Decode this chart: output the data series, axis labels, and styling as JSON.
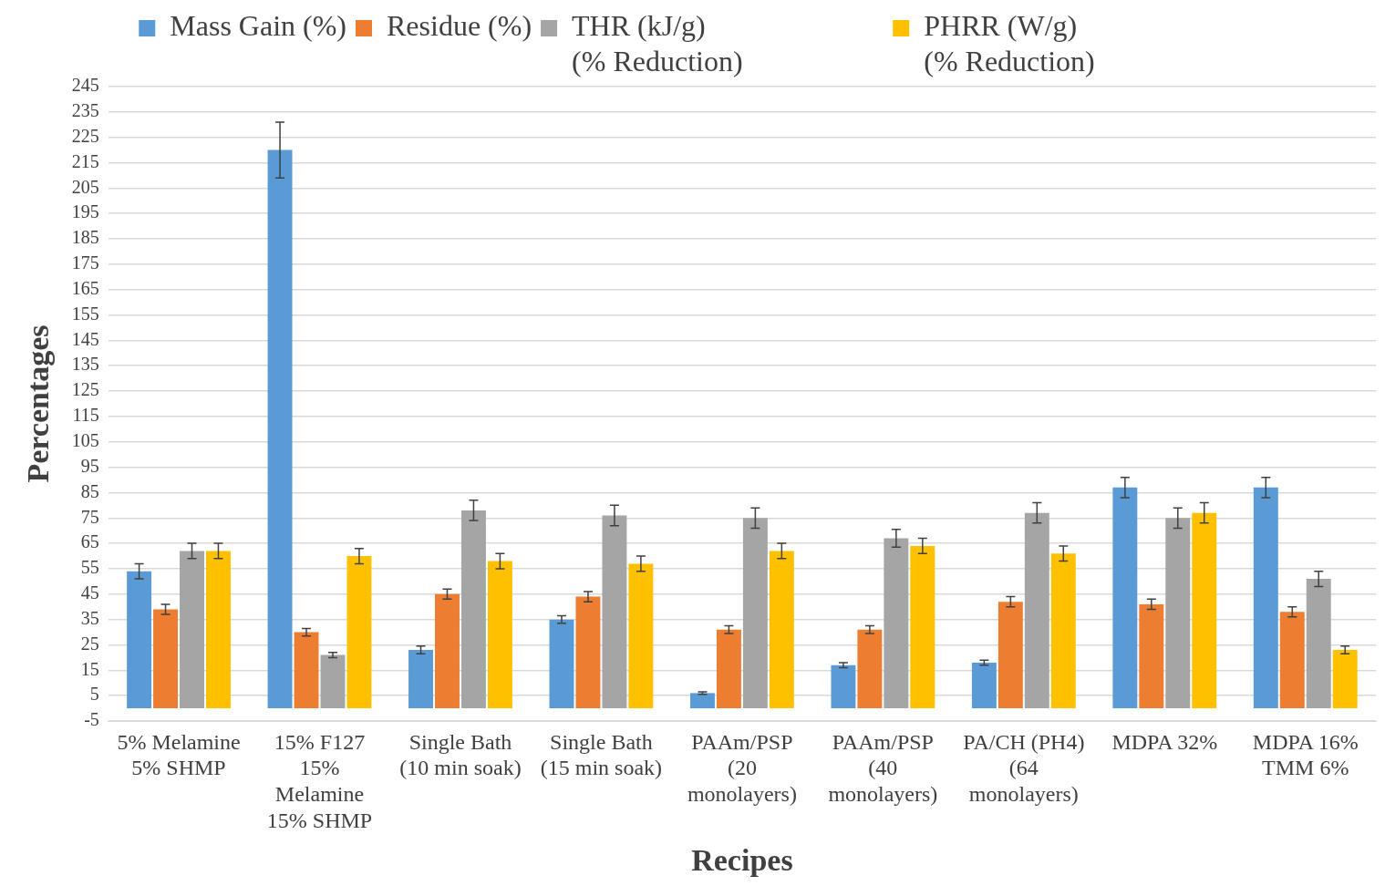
{
  "chart_data": {
    "type": "bar",
    "xlabel": "Recipes",
    "ylabel": "Percentages",
    "categories": [
      "5% Melamine\n5% SHMP",
      "15% F127\n15%\nMelamine\n15% SHMP",
      "Single Bath\n(10 min soak)",
      "Single Bath\n(15 min soak)",
      "PAAm/PSP\n(20\nmonolayers)",
      "PAAm/PSP\n(40\nmonolayers)",
      "PA/CH (PH4)\n(64\nmonolayers)",
      "MDPA 32%",
      "MDPA 16%\nTMM 6%"
    ],
    "series": [
      {
        "name": "Mass Gain (%)",
        "color": "#5b9bd5",
        "values": [
          54,
          220,
          23,
          35,
          6,
          17,
          18,
          87,
          87
        ],
        "errors": [
          3,
          11,
          1.5,
          1.5,
          0.5,
          1,
          1,
          4,
          4
        ]
      },
      {
        "name": "Residue (%)",
        "color": "#ed7d31",
        "values": [
          39,
          30,
          45,
          44,
          31,
          31,
          42,
          41,
          38
        ],
        "errors": [
          2,
          1.5,
          2,
          2,
          1.5,
          1.5,
          2,
          2,
          2
        ]
      },
      {
        "name": "THR (kJ/g)\n(% Reduction)",
        "color": "#a5a5a5",
        "values": [
          62,
          21,
          78,
          76,
          75,
          67,
          77,
          75,
          51
        ],
        "errors": [
          3,
          1,
          4,
          4,
          4,
          3.5,
          4,
          4,
          3
        ]
      },
      {
        "name": "PHRR (W/g)\n(% Reduction)",
        "color": "#ffc000",
        "values": [
          62,
          60,
          58,
          57,
          62,
          64,
          61,
          77,
          23
        ],
        "errors": [
          3,
          3,
          3,
          3,
          3,
          3,
          3,
          4,
          1.5
        ]
      }
    ],
    "ylim": [
      -5,
      245
    ],
    "yticks": [
      -5,
      5,
      15,
      25,
      35,
      45,
      55,
      65,
      75,
      85,
      95,
      105,
      115,
      125,
      135,
      145,
      155,
      165,
      175,
      185,
      195,
      205,
      215,
      225,
      235,
      245
    ],
    "grid": "y",
    "legend": "top"
  }
}
